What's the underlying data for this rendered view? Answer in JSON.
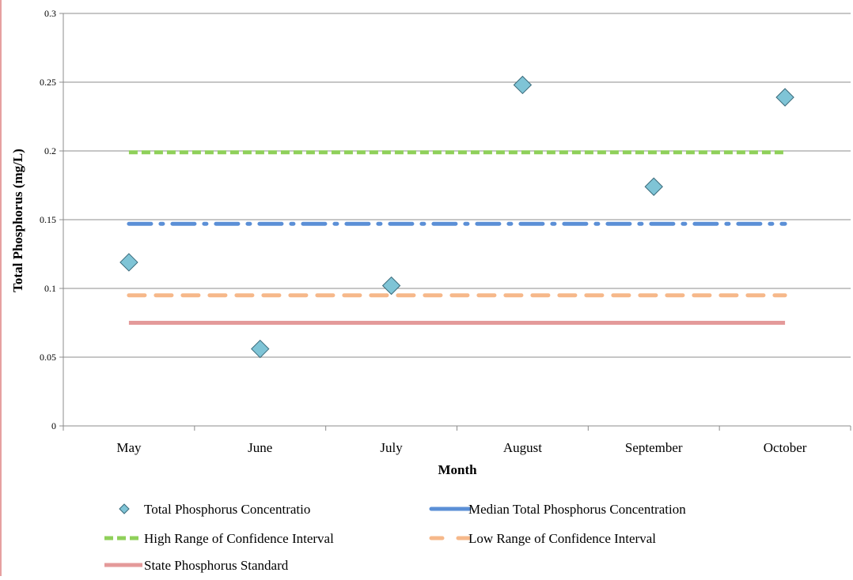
{
  "colors": {
    "background": "#ffffff",
    "grid": "#8c8c8c",
    "marker_fill": "#7fc4d6",
    "marker_stroke": "#3a6a7a",
    "median": "#5b8fd6",
    "high_ci": "#8fd05a",
    "low_ci": "#f6b88a",
    "standard": "#e49a9a"
  },
  "chart_data": {
    "type": "line",
    "xlabel": "Month",
    "ylabel": "Total Phosphorus (mg/L)",
    "ylim": [
      0,
      0.3
    ],
    "yticks": [
      0,
      0.05,
      0.1,
      0.15,
      0.2,
      0.25,
      0.3
    ],
    "ytick_labels": [
      "0",
      "0.05",
      "0.1",
      "0.15",
      "0.2",
      "0.25",
      "0.3"
    ],
    "categories": [
      "May",
      "June",
      "July",
      "August",
      "September",
      "October"
    ],
    "grid": "horizontal",
    "legend_position": "bottom",
    "series": [
      {
        "name": "Total Phosphorus Concentratio",
        "style": "marker",
        "marker": "diamond",
        "color": "#7fc4d6",
        "values": [
          0.119,
          0.056,
          0.102,
          0.248,
          0.174,
          0.239
        ]
      },
      {
        "name": "Median Total Phosphorus Concentration",
        "style": "dash-dot",
        "color": "#5b8fd6",
        "values": [
          0.147,
          0.147,
          0.147,
          0.147,
          0.147,
          0.147
        ]
      },
      {
        "name": "High Range of Confidence Interval",
        "style": "dash",
        "color": "#8fd05a",
        "values": [
          0.199,
          0.199,
          0.199,
          0.199,
          0.199,
          0.199
        ]
      },
      {
        "name": "Low Range of Confidence Interval",
        "style": "long-dash",
        "color": "#f6b88a",
        "values": [
          0.095,
          0.095,
          0.095,
          0.095,
          0.095,
          0.095
        ]
      },
      {
        "name": "State Phosphorus Standard",
        "style": "solid",
        "color": "#e49a9a",
        "values": [
          0.075,
          0.075,
          0.075,
          0.075,
          0.075,
          0.075
        ]
      }
    ]
  }
}
